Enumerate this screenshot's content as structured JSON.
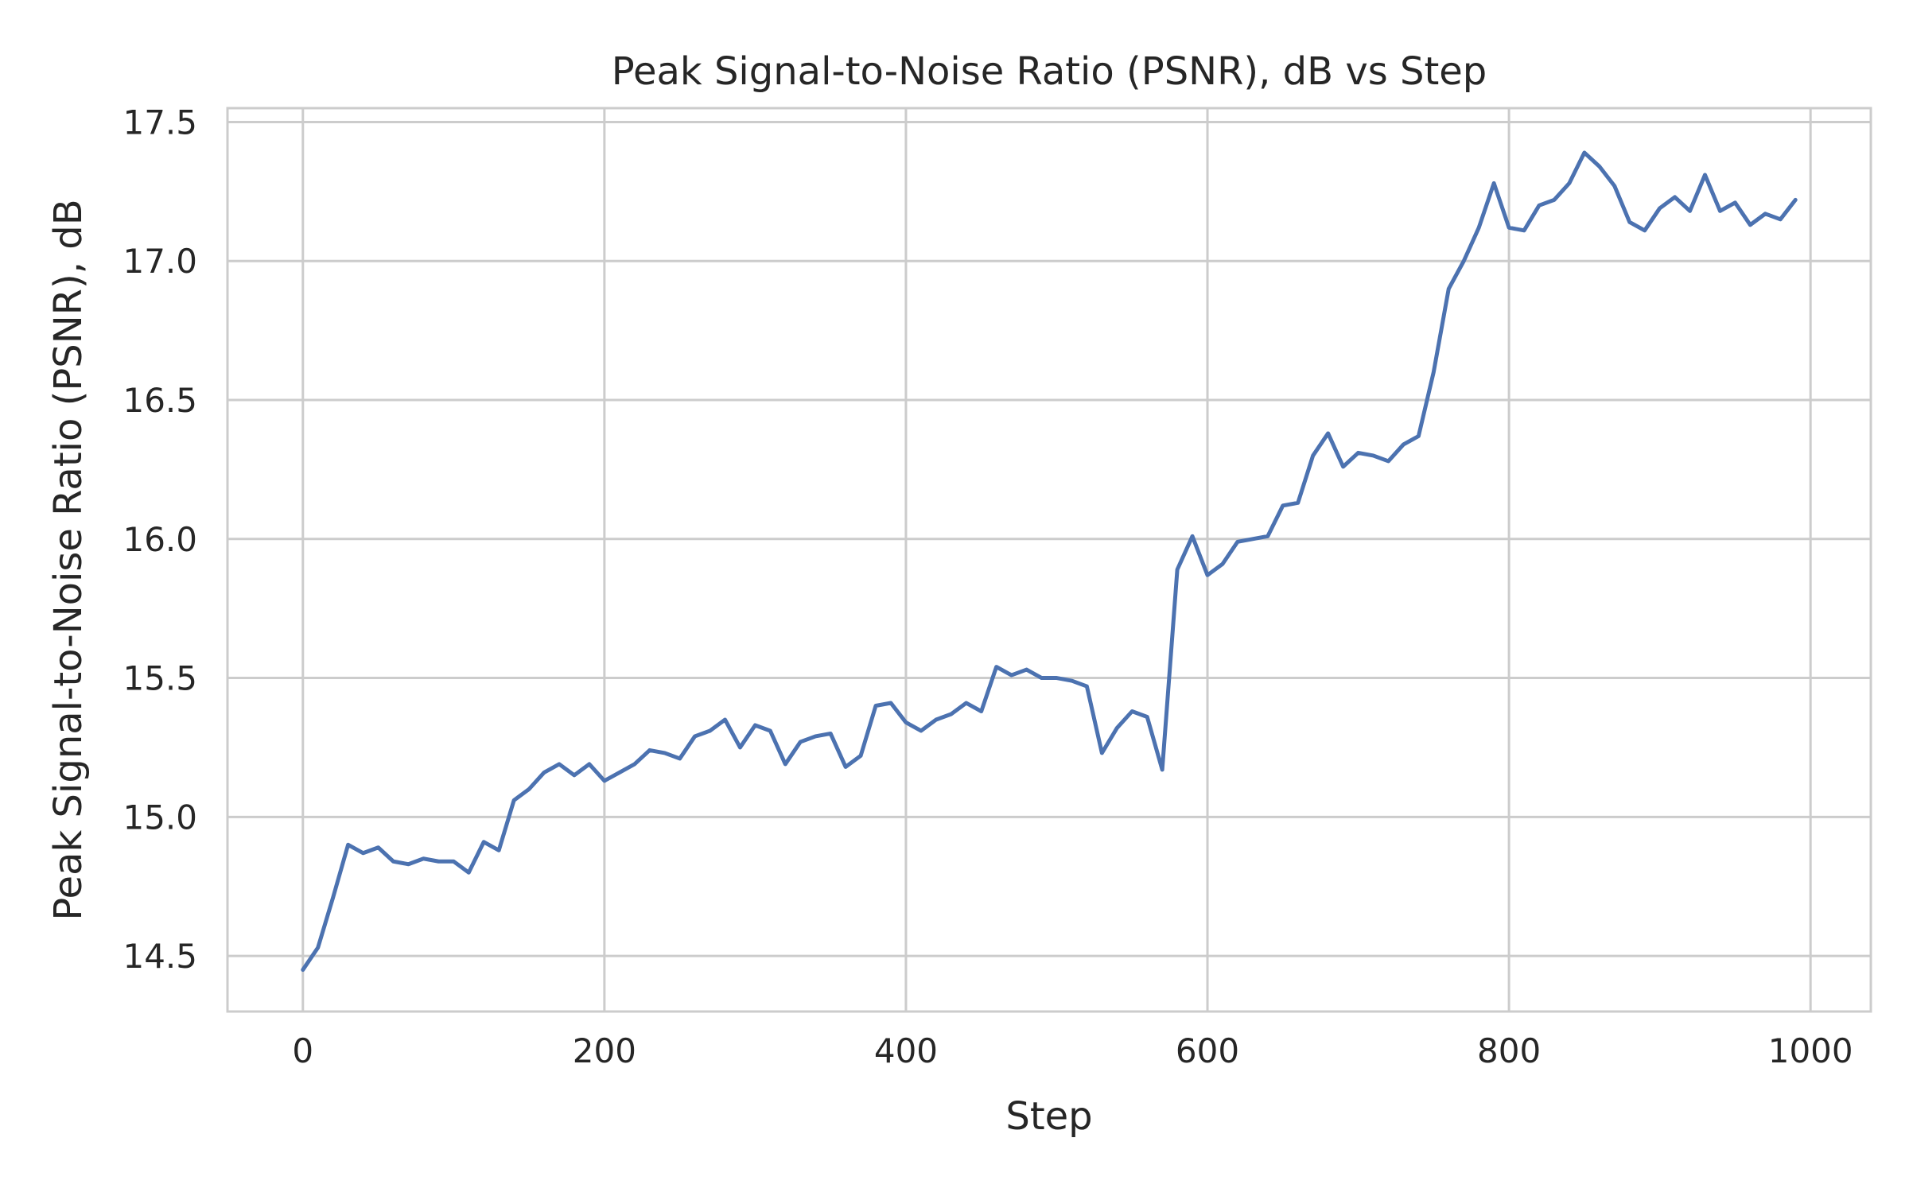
{
  "chart_data": {
    "type": "line",
    "title": "Peak Signal-to-Noise Ratio (PSNR), dB vs Step",
    "xlabel": "Step",
    "ylabel": "Peak Signal-to-Noise Ratio (PSNR), dB",
    "xlim": [
      -50,
      1040
    ],
    "ylim": [
      14.3,
      17.55
    ],
    "grid": true,
    "legend": "none",
    "x_ticks": [
      0,
      200,
      400,
      600,
      800,
      1000
    ],
    "x_tick_labels": [
      "0",
      "200",
      "400",
      "600",
      "800",
      "1000"
    ],
    "y_ticks": [
      14.5,
      15.0,
      15.5,
      16.0,
      16.5,
      17.0,
      17.5
    ],
    "y_tick_labels": [
      "14.5",
      "15.0",
      "15.5",
      "16.0",
      "16.5",
      "17.0",
      "17.5"
    ],
    "colors": {
      "line": "#4c72b0",
      "grid": "#cccccc",
      "axes_edge": "#cccccc",
      "text": "#262626"
    },
    "series": [
      {
        "x": [
          0,
          10,
          20,
          30,
          40,
          50,
          60,
          70,
          80,
          90,
          100,
          110,
          120,
          130,
          140,
          150,
          160,
          170,
          180,
          190,
          200,
          210,
          220,
          230,
          240,
          250,
          260,
          270,
          280,
          290,
          300,
          310,
          320,
          330,
          340,
          350,
          360,
          370,
          380,
          390,
          400,
          410,
          420,
          430,
          440,
          450,
          460,
          470,
          480,
          490,
          500,
          510,
          520,
          530,
          540,
          550,
          560,
          570,
          580,
          590,
          600,
          610,
          620,
          630,
          640,
          650,
          660,
          670,
          680,
          690,
          700,
          710,
          720,
          730,
          740,
          750,
          760,
          770,
          780,
          790,
          800,
          810,
          820,
          830,
          840,
          850,
          860,
          870,
          880,
          890,
          900,
          910,
          920,
          930,
          940,
          950,
          960,
          970,
          980,
          990
        ],
        "values": [
          14.45,
          14.53,
          14.71,
          14.9,
          14.87,
          14.89,
          14.84,
          14.83,
          14.85,
          14.84,
          14.84,
          14.8,
          14.91,
          14.88,
          15.06,
          15.1,
          15.16,
          15.19,
          15.15,
          15.19,
          15.13,
          15.16,
          15.19,
          15.24,
          15.23,
          15.21,
          15.29,
          15.31,
          15.35,
          15.25,
          15.33,
          15.31,
          15.19,
          15.27,
          15.29,
          15.3,
          15.18,
          15.22,
          15.4,
          15.41,
          15.34,
          15.31,
          15.35,
          15.37,
          15.41,
          15.38,
          15.54,
          15.51,
          15.53,
          15.5,
          15.5,
          15.49,
          15.47,
          15.23,
          15.32,
          15.38,
          15.36,
          15.17,
          15.89,
          16.01,
          15.87,
          15.91,
          15.99,
          16.0,
          16.01,
          16.12,
          16.13,
          16.3,
          16.38,
          16.26,
          16.31,
          16.3,
          16.28,
          16.34,
          16.37,
          16.6,
          16.9,
          17.0,
          17.12,
          17.28,
          17.12,
          17.11,
          17.2,
          17.22,
          17.28,
          17.39,
          17.34,
          17.27,
          17.14,
          17.11,
          17.19,
          17.23,
          17.18,
          17.31,
          17.18,
          17.21,
          17.13,
          17.17,
          17.15,
          17.22
        ]
      }
    ]
  }
}
